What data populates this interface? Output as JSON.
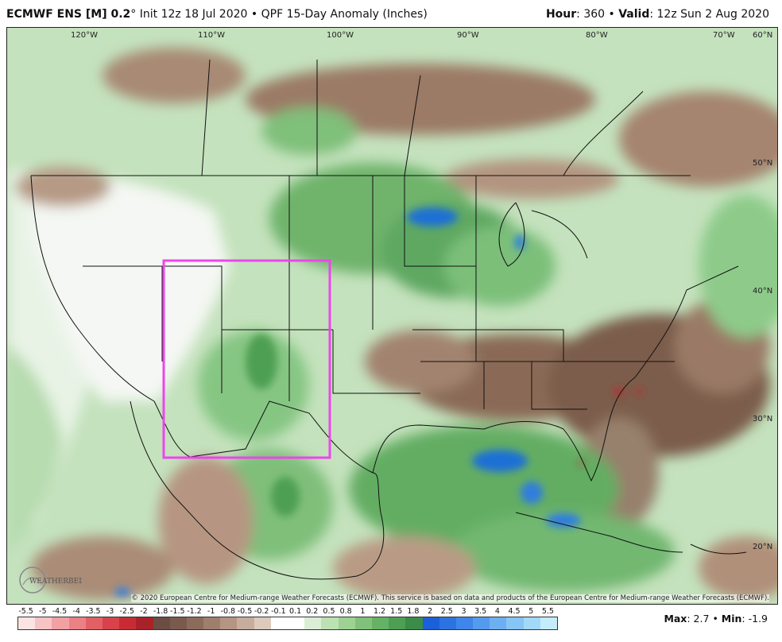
{
  "header": {
    "model": "ECMWF ENS [M] 0.2",
    "degree": "°",
    "init": "Init 12z 18 Jul 2020",
    "bullet": "•",
    "product": "QPF 15-Day Anomaly (Inches)",
    "hour_label": "Hour",
    "hour_value": ": 360",
    "valid_label": "Valid",
    "valid_value": ": 12z Sun 2 Aug 2020"
  },
  "map": {
    "lon_labels": [
      "120°W",
      "110°W",
      "100°W",
      "90°W",
      "80°W",
      "70°W",
      "60°N"
    ],
    "lat_labels": [
      "50°N",
      "40°N",
      "30°N",
      "20°N"
    ],
    "highlight_box_color": "#ee44ee",
    "credit": "© 2020 European Centre for Medium-range Weather Forecasts (ECMWF). This service is based on data and products of the European Centre for Medium-range Weather Forecasts (ECMWF).",
    "logo_text": "WEATHERBELL",
    "colors": {
      "dry_strong": "#6b4d3f",
      "dry_mid": "#8a6a58",
      "dry_light": "#b69680",
      "neutral": "#f4f6f4",
      "wet_light": "#b9ddb0",
      "wet_mid": "#7cc07a",
      "wet_strong": "#3f9a52",
      "wet_max": "#1f6fd6"
    }
  },
  "colorbar": {
    "labels": [
      "-5.5",
      "-5",
      "-4.5",
      "-4",
      "-3.5",
      "-3",
      "-2.5",
      "-2",
      "-1.8",
      "-1.5",
      "-1.2",
      "-1",
      "-0.8",
      "-0.5",
      "-0.2",
      "-0.1",
      "0.1",
      "0.2",
      "0.5",
      "0.8",
      "1",
      "1.2",
      "1.5",
      "1.8",
      "2",
      "2.5",
      "3",
      "3.5",
      "4",
      "4.5",
      "5",
      "5.5"
    ],
    "colors": [
      "#fde4e4",
      "#f8c3c5",
      "#f2a0a3",
      "#eb8085",
      "#e35f66",
      "#d8424b",
      "#c72c35",
      "#a8222a",
      "#6b4d43",
      "#7a5a4d",
      "#8c6b5b",
      "#a07e6b",
      "#b59484",
      "#c7ad9e",
      "#dccabd",
      "#ffffff",
      "#ffffff",
      "#dbeed5",
      "#bce2b3",
      "#9dd293",
      "#81c27a",
      "#66b264",
      "#4e9f53",
      "#3b8c47",
      "#1d5fd8",
      "#2c73e2",
      "#3e86e8",
      "#549bee",
      "#6cb0f2",
      "#86c5f6",
      "#a2d9f9",
      "#c3ecfc"
    ]
  },
  "stats": {
    "max_label": "Max",
    "max_value": ": 2.7",
    "sep": "•",
    "min_label": "Min",
    "min_value": ": -1.9"
  }
}
